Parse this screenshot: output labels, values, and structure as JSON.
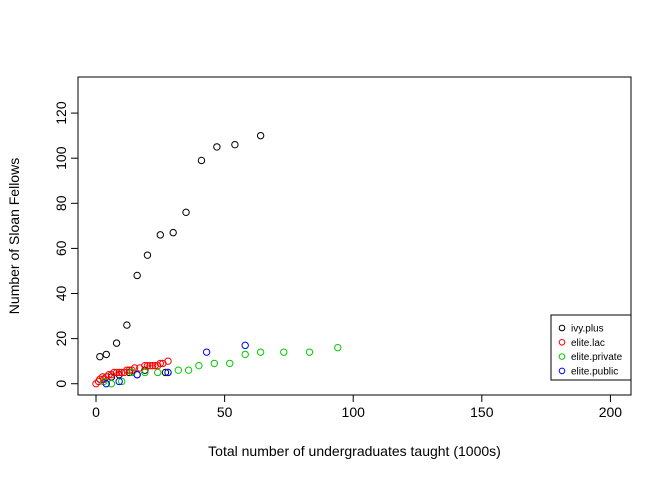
{
  "chart_data": {
    "type": "scatter",
    "xlabel": "Total number of undergraduates taught (1000s)",
    "ylabel": "Number of Sloan Fellows",
    "xlim": [
      -7,
      208
    ],
    "ylim": [
      -5,
      136
    ],
    "xticks": [
      0,
      50,
      100,
      150,
      200
    ],
    "yticks": [
      0,
      20,
      40,
      60,
      80,
      100,
      120
    ],
    "marker": "open-circle",
    "legend_position": "bottom-right",
    "series": [
      {
        "name": "ivy.plus",
        "color": "#000000",
        "points": [
          [
            1.5,
            12
          ],
          [
            4,
            13
          ],
          [
            8,
            18
          ],
          [
            12,
            26
          ],
          [
            16,
            48
          ],
          [
            20,
            57
          ],
          [
            25,
            66
          ],
          [
            30,
            67
          ],
          [
            35,
            76
          ],
          [
            41,
            99
          ],
          [
            47,
            105
          ],
          [
            54,
            106
          ],
          [
            64,
            110
          ],
          [
            3,
            2
          ],
          [
            6,
            3
          ],
          [
            9,
            4
          ],
          [
            13,
            5
          ],
          [
            16,
            4
          ],
          [
            19,
            6
          ],
          [
            27,
            5
          ]
        ]
      },
      {
        "name": "elite.lac",
        "color": "#ff0000",
        "points": [
          [
            0,
            0
          ],
          [
            1,
            1
          ],
          [
            1.5,
            2
          ],
          [
            2.5,
            3
          ],
          [
            3,
            2
          ],
          [
            4,
            3
          ],
          [
            5,
            4
          ],
          [
            6,
            4
          ],
          [
            7,
            5
          ],
          [
            8,
            5
          ],
          [
            9,
            5
          ],
          [
            10,
            5
          ],
          [
            11,
            5
          ],
          [
            12,
            6
          ],
          [
            13,
            6
          ],
          [
            14,
            6
          ],
          [
            15,
            7
          ],
          [
            17,
            7
          ],
          [
            19,
            8
          ],
          [
            20,
            8
          ],
          [
            21,
            8
          ],
          [
            22,
            8
          ],
          [
            23,
            8
          ],
          [
            24,
            8
          ],
          [
            25,
            9
          ],
          [
            26,
            9
          ],
          [
            28,
            10
          ]
        ]
      },
      {
        "name": "elite.private",
        "color": "#00cc00",
        "points": [
          [
            3,
            1
          ],
          [
            6,
            0
          ],
          [
            10,
            1
          ],
          [
            14,
            5
          ],
          [
            19,
            5
          ],
          [
            24,
            5
          ],
          [
            28,
            5
          ],
          [
            32,
            6
          ],
          [
            36,
            6
          ],
          [
            40,
            8
          ],
          [
            46,
            9
          ],
          [
            52,
            9
          ],
          [
            58,
            13
          ],
          [
            64,
            14
          ],
          [
            73,
            14
          ],
          [
            83,
            14
          ],
          [
            94,
            16
          ]
        ]
      },
      {
        "name": "elite.public",
        "color": "#0000ff",
        "points": [
          [
            4,
            0
          ],
          [
            9,
            1
          ],
          [
            16,
            4
          ],
          [
            28,
            5
          ],
          [
            43,
            14
          ],
          [
            58,
            17
          ]
        ]
      }
    ]
  }
}
